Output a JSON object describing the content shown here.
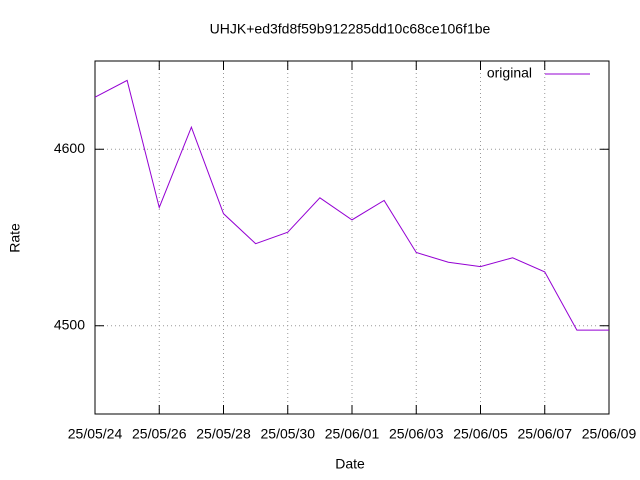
{
  "chart_data": {
    "type": "line",
    "title": "UHJK+ed3fd8f59b912285dd10c68ce106f1be",
    "x_label": "Date",
    "y_label": "Rate",
    "categories": [
      "25/05/24",
      null,
      "25/05/26",
      null,
      "25/05/28",
      null,
      "25/05/30",
      null,
      "25/06/01",
      null,
      "25/06/03",
      null,
      "25/06/05",
      null,
      "25/06/07",
      null,
      "25/06/09"
    ],
    "series": [
      {
        "name": "original",
        "color": "#9400d3",
        "values": [
          4629.5,
          4639,
          4567,
          4612.5,
          4563.5,
          4546.5,
          4553,
          4572.5,
          4560,
          4571,
          4541.5,
          4536,
          4533.5,
          4538.5,
          4530.5,
          4497.5,
          4497.5
        ]
      }
    ],
    "ylim": [
      4450,
      4650
    ],
    "yticks": [
      4500,
      4600
    ],
    "grid": true,
    "legend": "top-right"
  }
}
